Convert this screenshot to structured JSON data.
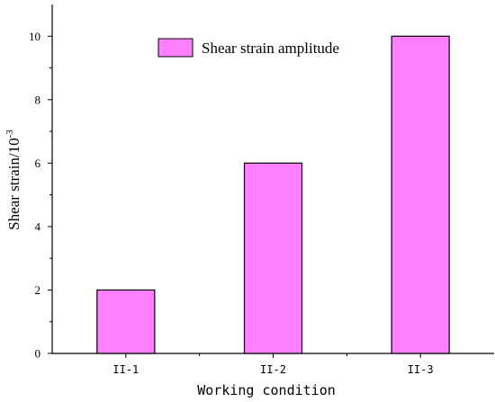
{
  "chart_data": {
    "type": "bar",
    "categories": [
      "II-1",
      "II-2",
      "II-3"
    ],
    "series": [
      {
        "name": "Shear strain amplitude",
        "values": [
          2,
          6,
          10
        ]
      }
    ],
    "xlabel": "Working condition",
    "ylabel": "Shear strain/10",
    "ylabel_exponent": "-3",
    "ylim": [
      0,
      11
    ],
    "yticks": [
      0,
      2,
      4,
      6,
      8,
      10
    ],
    "grid": false,
    "legend_position": "top-center",
    "bar_color": "#ff80ff",
    "edge_color": "#000000"
  }
}
